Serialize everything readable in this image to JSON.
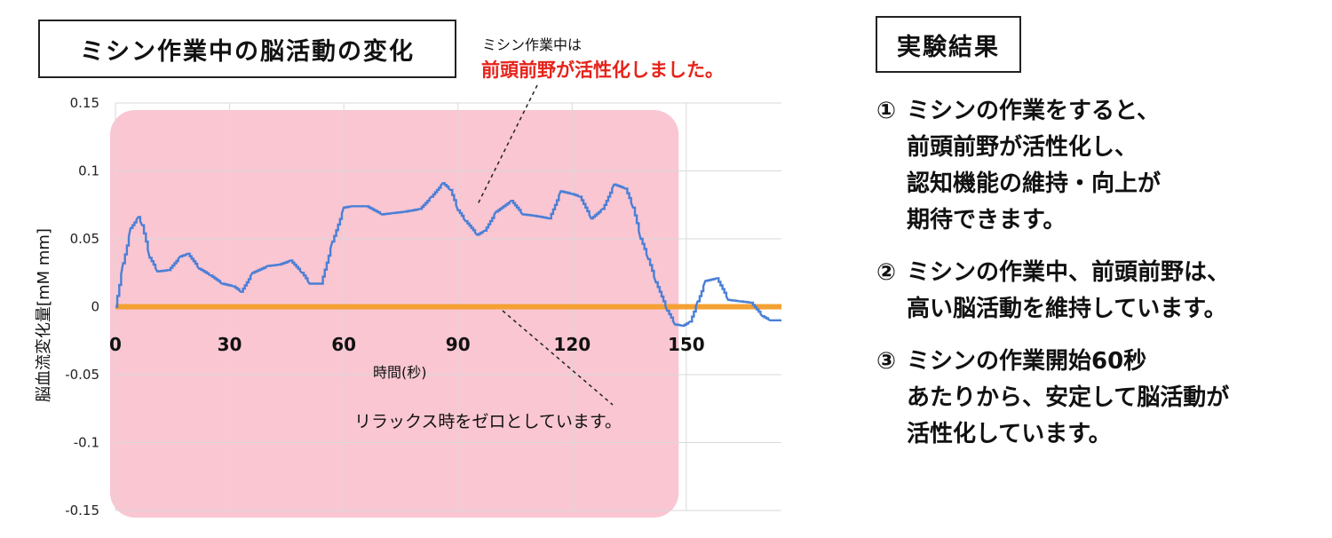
{
  "title": "ミシン作業中の脳活動の変化",
  "callout": {
    "small": "ミシン作業中は",
    "red": "前頭前野が活性化しました。"
  },
  "relax_note": "リラックス時をゼロとしています。",
  "results": {
    "title": "実験結果",
    "items": [
      {
        "num": "①",
        "text": "ミシンの作業をすると、\n前頭前野が活性化し、\n認知機能の維持・向上が\n期待できます。"
      },
      {
        "num": "②",
        "text": "ミシンの作業中、前頭前野は、\n高い脳活動を維持しています。"
      },
      {
        "num": "③",
        "text": "ミシンの作業開始60秒\nあたりから、安定して脳活動が\n活性化しています。"
      }
    ]
  },
  "colors": {
    "series": "#4a7fd6",
    "baseline": "#f5a032",
    "highlight": "#f9c6d2",
    "accent_red": "#e5231b"
  },
  "chart_data": {
    "type": "line",
    "xlabel": "時間(秒)",
    "ylabel": "脳血流変化量[mM mm]",
    "xlim": [
      0,
      175
    ],
    "ylim": [
      -0.15,
      0.15
    ],
    "x_ticks": [
      "0",
      "30",
      "60",
      "90",
      "120",
      "150"
    ],
    "y_ticks": [
      "0.15",
      "0.1",
      "0.05",
      "0",
      "-0.05",
      "-0.1",
      "-0.15"
    ],
    "grid": true,
    "highlight_range": [
      0,
      148
    ],
    "baseline": 0,
    "series": [
      {
        "x": [
          0,
          2,
          4,
          6,
          7,
          9,
          11,
          14,
          17,
          19,
          22,
          25,
          28,
          31,
          33,
          36,
          40,
          43,
          46,
          49,
          51,
          54,
          57,
          60,
          62,
          66,
          70,
          73,
          76,
          80,
          83,
          86,
          88,
          90,
          92,
          95,
          97,
          100,
          104,
          107,
          110,
          114,
          117,
          120,
          122,
          125,
          128,
          131,
          134,
          136,
          138,
          140,
          142,
          145,
          147,
          149,
          151,
          153,
          155,
          158,
          161,
          164,
          167,
          170,
          172,
          175
        ],
        "values": [
          0.0,
          0.032,
          0.058,
          0.066,
          0.06,
          0.036,
          0.026,
          0.027,
          0.037,
          0.039,
          0.028,
          0.023,
          0.017,
          0.015,
          0.011,
          0.025,
          0.03,
          0.031,
          0.034,
          0.025,
          0.017,
          0.017,
          0.048,
          0.073,
          0.074,
          0.074,
          0.068,
          0.069,
          0.07,
          0.072,
          0.081,
          0.091,
          0.086,
          0.071,
          0.063,
          0.053,
          0.056,
          0.07,
          0.078,
          0.068,
          0.067,
          0.065,
          0.085,
          0.083,
          0.081,
          0.065,
          0.072,
          0.09,
          0.087,
          0.073,
          0.05,
          0.035,
          0.018,
          -0.003,
          -0.013,
          -0.014,
          -0.011,
          0.004,
          0.019,
          0.021,
          0.005,
          0.004,
          0.003,
          -0.007,
          -0.01,
          -0.01
        ]
      }
    ]
  }
}
